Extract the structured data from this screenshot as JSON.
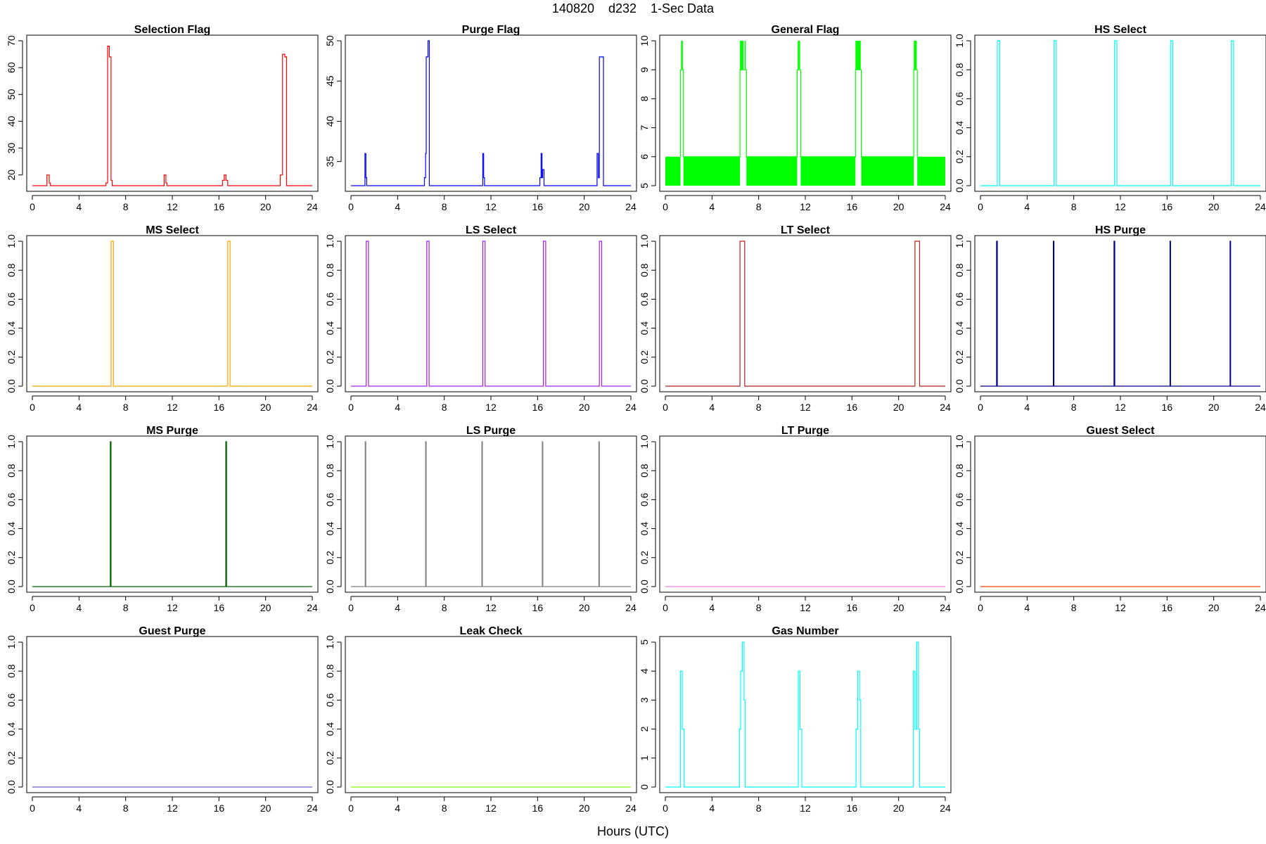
{
  "figure": {
    "title": "140820    d232    1-Sec Data",
    "xlabel": "Hours (UTC)"
  },
  "chart_data": [
    {
      "title": "Selection Flag",
      "type": "line",
      "color": "#ff0000",
      "xlim": [
        0,
        24
      ],
      "ylim": [
        16,
        70
      ],
      "xticks": [
        0,
        4,
        8,
        12,
        16,
        20,
        24
      ],
      "yticks": [
        20,
        30,
        40,
        50,
        60,
        70
      ],
      "series": [
        {
          "x": [
            0,
            1.25,
            1.25,
            1.45,
            1.45,
            1.55,
            1.55,
            6.3,
            6.3,
            6.45,
            6.45,
            6.6,
            6.6,
            6.75,
            6.75,
            6.85,
            6.85,
            11.3,
            11.3,
            11.45,
            11.45,
            11.55,
            11.55,
            16.3,
            16.3,
            16.45,
            16.45,
            16.6,
            16.6,
            16.75,
            16.75,
            21.25,
            21.25,
            21.45,
            21.45,
            21.65,
            21.65,
            21.8,
            21.8,
            24
          ],
          "y": [
            16,
            16,
            20,
            20,
            17,
            17,
            16,
            16,
            17,
            17,
            68,
            68,
            64,
            64,
            18,
            18,
            16,
            16,
            20,
            20,
            17,
            17,
            16,
            16,
            18,
            18,
            20,
            20,
            18,
            18,
            16,
            16,
            20,
            20,
            65,
            65,
            64,
            64,
            16,
            16
          ]
        }
      ]
    },
    {
      "title": "Purge Flag",
      "type": "line",
      "color": "#0000ff",
      "xlim": [
        0,
        24
      ],
      "ylim": [
        32,
        50
      ],
      "xticks": [
        0,
        4,
        8,
        12,
        16,
        20,
        24
      ],
      "yticks": [
        35,
        40,
        45,
        50
      ],
      "series": [
        {
          "x": [
            0,
            1.2,
            1.2,
            1.28,
            1.28,
            1.35,
            1.35,
            1.42,
            1.42,
            6.3,
            6.3,
            6.4,
            6.4,
            6.45,
            6.45,
            6.6,
            6.6,
            6.72,
            6.72,
            6.85,
            6.85,
            11.3,
            11.3,
            11.38,
            11.38,
            11.45,
            11.45,
            11.5,
            11.5,
            16.2,
            16.2,
            16.3,
            16.3,
            16.38,
            16.38,
            16.43,
            16.43,
            16.55,
            16.55,
            16.6,
            16.6,
            21.1,
            21.1,
            21.2,
            21.2,
            21.3,
            21.3,
            21.65,
            21.65,
            24
          ],
          "y": [
            32,
            32,
            36,
            36,
            33,
            33,
            32,
            32,
            32,
            32,
            33,
            33,
            36,
            36,
            48,
            48,
            50,
            50,
            32,
            32,
            32,
            32,
            36,
            36,
            33,
            33,
            32,
            32,
            32,
            32,
            33,
            33,
            36,
            36,
            33,
            33,
            34,
            34,
            32,
            32,
            32,
            32,
            36,
            36,
            33,
            33,
            48,
            48,
            32,
            32
          ]
        }
      ]
    },
    {
      "title": "General Flag",
      "type": "line",
      "color": "#00ff00",
      "xlim": [
        0,
        24
      ],
      "ylim": [
        5,
        10
      ],
      "xticks": [
        0,
        4,
        8,
        12,
        16,
        20,
        24
      ],
      "yticks": [
        5,
        6,
        7,
        8,
        9,
        10
      ],
      "bands": [
        {
          "from": 0,
          "to": 1.3,
          "y0": 5,
          "y1": 6
        },
        {
          "from": 1.55,
          "to": 6.4,
          "y0": 5,
          "y1": 6
        },
        {
          "from": 6.95,
          "to": 11.3,
          "y0": 5,
          "y1": 6
        },
        {
          "from": 11.6,
          "to": 16.3,
          "y0": 5,
          "y1": 6
        },
        {
          "from": 16.8,
          "to": 21.3,
          "y0": 5,
          "y1": 6
        },
        {
          "from": 21.6,
          "to": 24,
          "y0": 5,
          "y1": 6
        },
        {
          "from": 1.35,
          "to": 1.5,
          "y0": 9,
          "y1": 10
        },
        {
          "from": 6.4,
          "to": 6.7,
          "y0": 9,
          "y1": 10
        },
        {
          "from": 6.8,
          "to": 6.9,
          "y0": 9,
          "y1": 10
        },
        {
          "from": 11.35,
          "to": 11.55,
          "y0": 9,
          "y1": 10
        },
        {
          "from": 16.3,
          "to": 16.75,
          "y0": 9,
          "y1": 10
        },
        {
          "from": 21.3,
          "to": 21.55,
          "y0": 9,
          "y1": 10
        }
      ],
      "series": [
        {
          "x": [
            1.3,
            1.3,
            1.55,
            1.55,
            6.4,
            6.4,
            6.95,
            6.95,
            11.3,
            11.3,
            11.6,
            11.6,
            16.3,
            16.3,
            16.8,
            16.8,
            21.3,
            21.3,
            21.6,
            21.6
          ],
          "y": [
            6,
            9,
            9,
            6,
            6,
            9,
            9,
            6,
            6,
            9,
            9,
            6,
            6,
            9,
            9,
            6,
            6,
            9,
            9,
            6
          ]
        }
      ]
    },
    {
      "title": "HS Select",
      "type": "line",
      "color": "#00ffff",
      "xlim": [
        0,
        24
      ],
      "ylim": [
        0,
        1
      ],
      "xticks": [
        0,
        4,
        8,
        12,
        16,
        20,
        24
      ],
      "yticks": [
        0.0,
        0.2,
        0.4,
        0.6,
        0.8,
        1.0
      ],
      "series": [
        {
          "x": [
            0,
            1.45,
            1.45,
            1.65,
            1.65,
            6.3,
            6.3,
            6.5,
            6.5,
            11.5,
            11.5,
            11.7,
            11.7,
            16.3,
            16.3,
            16.5,
            16.5,
            21.5,
            21.5,
            21.7,
            21.7,
            24
          ],
          "y": [
            0,
            0,
            1,
            1,
            0,
            0,
            1,
            1,
            0,
            0,
            1,
            1,
            0,
            0,
            1,
            1,
            0,
            0,
            1,
            1,
            0,
            0
          ]
        }
      ]
    },
    {
      "title": "MS Select",
      "type": "line",
      "color": "#ffa500",
      "xlim": [
        0,
        24
      ],
      "ylim": [
        0,
        1
      ],
      "xticks": [
        0,
        4,
        8,
        12,
        16,
        20,
        24
      ],
      "yticks": [
        0.0,
        0.2,
        0.4,
        0.6,
        0.8,
        1.0
      ],
      "series": [
        {
          "x": [
            0,
            6.75,
            6.75,
            6.95,
            6.95,
            16.75,
            16.75,
            16.95,
            16.95,
            24
          ],
          "y": [
            0,
            0,
            1,
            1,
            0,
            0,
            1,
            1,
            0,
            0
          ]
        }
      ]
    },
    {
      "title": "LS Select",
      "type": "line",
      "color": "#a020f0",
      "xlim": [
        0,
        24
      ],
      "ylim": [
        0,
        1
      ],
      "xticks": [
        0,
        4,
        8,
        12,
        16,
        20,
        24
      ],
      "yticks": [
        0.0,
        0.2,
        0.4,
        0.6,
        0.8,
        1.0
      ],
      "series": [
        {
          "x": [
            0,
            1.3,
            1.3,
            1.5,
            1.5,
            6.5,
            6.5,
            6.7,
            6.7,
            11.3,
            11.3,
            11.5,
            11.5,
            16.5,
            16.5,
            16.7,
            16.7,
            21.3,
            21.3,
            21.5,
            21.5,
            24
          ],
          "y": [
            0,
            0,
            1,
            1,
            0,
            0,
            1,
            1,
            0,
            0,
            1,
            1,
            0,
            0,
            1,
            1,
            0,
            0,
            1,
            1,
            0,
            0
          ]
        }
      ]
    },
    {
      "title": "LT Select",
      "type": "line",
      "color": "#b22222",
      "xlim": [
        0,
        24
      ],
      "ylim": [
        0,
        1
      ],
      "xticks": [
        0,
        4,
        8,
        12,
        16,
        20,
        24
      ],
      "yticks": [
        0.0,
        0.2,
        0.4,
        0.6,
        0.8,
        1.0
      ],
      "series": [
        {
          "x": [
            0,
            6.4,
            6.4,
            6.8,
            6.8,
            21.4,
            21.4,
            21.8,
            21.8,
            24
          ],
          "y": [
            0,
            0,
            1,
            1,
            0,
            0,
            1,
            1,
            0,
            0
          ]
        }
      ]
    },
    {
      "title": "HS Purge",
      "type": "line",
      "color": "#00008b",
      "xlim": [
        0,
        24
      ],
      "ylim": [
        0,
        1
      ],
      "xticks": [
        0,
        4,
        8,
        12,
        16,
        20,
        24
      ],
      "yticks": [
        0.0,
        0.2,
        0.4,
        0.6,
        0.8,
        1.0
      ],
      "series": [
        {
          "x": [
            0,
            1.38,
            1.38,
            1.45,
            1.45,
            6.25,
            6.25,
            6.3,
            6.3,
            11.45,
            11.45,
            11.52,
            11.52,
            16.25,
            16.25,
            16.3,
            16.3,
            21.4,
            21.4,
            21.45,
            21.45,
            24
          ],
          "y": [
            0,
            0,
            1,
            1,
            0,
            0,
            1,
            1,
            0,
            0,
            1,
            1,
            0,
            0,
            1,
            1,
            0,
            0,
            1,
            1,
            0,
            0
          ]
        }
      ]
    },
    {
      "title": "MS Purge",
      "type": "line",
      "color": "#006400",
      "xlim": [
        0,
        24
      ],
      "ylim": [
        0,
        1
      ],
      "xticks": [
        0,
        4,
        8,
        12,
        16,
        20,
        24
      ],
      "yticks": [
        0.0,
        0.2,
        0.4,
        0.6,
        0.8,
        1.0
      ],
      "series": [
        {
          "x": [
            0,
            6.68,
            6.68,
            6.75,
            6.75,
            16.58,
            16.58,
            16.65,
            16.65,
            24
          ],
          "y": [
            0,
            0,
            1,
            1,
            0,
            0,
            1,
            1,
            0,
            0
          ]
        }
      ]
    },
    {
      "title": "LS Purge",
      "type": "line",
      "color": "#808080",
      "xlim": [
        0,
        24
      ],
      "ylim": [
        0,
        1
      ],
      "xticks": [
        0,
        4,
        8,
        12,
        16,
        20,
        24
      ],
      "yticks": [
        0.0,
        0.2,
        0.4,
        0.6,
        0.8,
        1.0
      ],
      "series": [
        {
          "x": [
            0,
            1.22,
            1.22,
            1.27,
            1.27,
            6.4,
            6.4,
            6.45,
            6.45,
            11.22,
            11.22,
            11.27,
            11.27,
            16.4,
            16.4,
            16.45,
            16.45,
            21.25,
            21.25,
            21.3,
            21.3,
            24
          ],
          "y": [
            0,
            0,
            1,
            1,
            0,
            0,
            1,
            1,
            0,
            0,
            1,
            1,
            0,
            0,
            1,
            1,
            0,
            0,
            1,
            1,
            0,
            0
          ]
        }
      ]
    },
    {
      "title": "LT Purge",
      "type": "line",
      "color": "#ee82ee",
      "xlim": [
        0,
        24
      ],
      "ylim": [
        0,
        1
      ],
      "xticks": [
        0,
        4,
        8,
        12,
        16,
        20,
        24
      ],
      "yticks": [
        0.0,
        0.2,
        0.4,
        0.6,
        0.8,
        1.0
      ],
      "series": [
        {
          "x": [
            0,
            24
          ],
          "y": [
            0,
            0
          ]
        }
      ]
    },
    {
      "title": "Guest Select",
      "type": "line",
      "color": "#ff4500",
      "xlim": [
        0,
        24
      ],
      "ylim": [
        0,
        1
      ],
      "xticks": [
        0,
        4,
        8,
        12,
        16,
        20,
        24
      ],
      "yticks": [
        0.0,
        0.2,
        0.4,
        0.6,
        0.8,
        1.0
      ],
      "series": [
        {
          "x": [
            0,
            24
          ],
          "y": [
            0,
            0
          ]
        }
      ]
    },
    {
      "title": "Guest Purge",
      "type": "line",
      "color": "#6a5acd",
      "xlim": [
        0,
        24
      ],
      "ylim": [
        0,
        1
      ],
      "xticks": [
        0,
        4,
        8,
        12,
        16,
        20,
        24
      ],
      "yticks": [
        0.0,
        0.2,
        0.4,
        0.6,
        0.8,
        1.0
      ],
      "series": [
        {
          "x": [
            0,
            24
          ],
          "y": [
            0,
            0
          ]
        }
      ]
    },
    {
      "title": "Leak Check",
      "type": "line",
      "color": "#7cfc00",
      "xlim": [
        0,
        24
      ],
      "ylim": [
        0,
        1
      ],
      "xticks": [
        0,
        4,
        8,
        12,
        16,
        20,
        24
      ],
      "yticks": [
        0.0,
        0.2,
        0.4,
        0.6,
        0.8,
        1.0
      ],
      "series": [
        {
          "x": [
            0,
            24
          ],
          "y": [
            0,
            0
          ]
        }
      ]
    },
    {
      "title": "Gas Number",
      "type": "line",
      "color": "#00ffff",
      "xlim": [
        0,
        24
      ],
      "ylim": [
        0,
        5
      ],
      "xticks": [
        0,
        4,
        8,
        12,
        16,
        20,
        24
      ],
      "yticks": [
        0,
        1,
        2,
        3,
        4,
        5
      ],
      "series": [
        {
          "x": [
            0,
            1.3,
            1.3,
            1.45,
            1.45,
            1.6,
            1.6,
            6.35,
            6.35,
            6.45,
            6.45,
            6.6,
            6.6,
            6.75,
            6.75,
            6.85,
            6.85,
            6.95,
            6.95,
            11.4,
            11.4,
            11.55,
            11.55,
            11.7,
            11.7,
            16.35,
            16.35,
            16.5,
            16.5,
            16.65,
            16.65,
            16.75,
            16.75,
            16.85,
            16.85,
            21.25,
            21.25,
            21.4,
            21.4,
            21.55,
            21.55,
            21.7,
            21.7,
            21.8,
            21.8,
            24
          ],
          "y": [
            0,
            0,
            4,
            4,
            2,
            2,
            0,
            0,
            2,
            2,
            4,
            4,
            5,
            5,
            3,
            3,
            0,
            0,
            0,
            0,
            4,
            4,
            2,
            2,
            0,
            0,
            2,
            2,
            4,
            4,
            3,
            3,
            0,
            0,
            0,
            0,
            4,
            4,
            2,
            2,
            5,
            5,
            2,
            2,
            0,
            0
          ]
        }
      ]
    }
  ]
}
